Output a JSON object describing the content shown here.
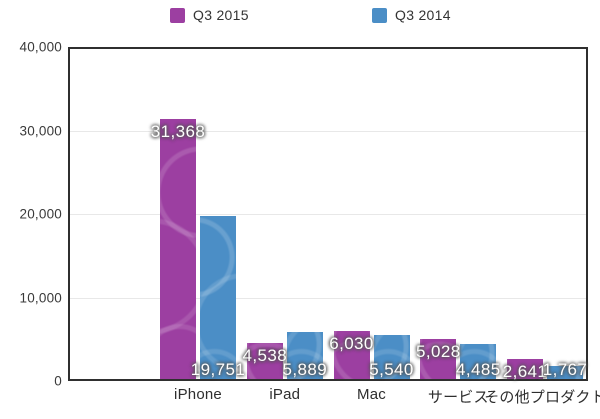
{
  "chart_data": {
    "type": "bar",
    "title": "",
    "categories": [
      "iPhone",
      "iPad",
      "Mac",
      "サービス",
      "その他プロダクト"
    ],
    "series": [
      {
        "name": "Q3 2015",
        "color": "#9c3fa1",
        "values": [
          31368,
          4538,
          6030,
          5028,
          2641
        ],
        "values_formatted": [
          "31,368",
          "4,538",
          "6,030",
          "5,028",
          "2,641"
        ]
      },
      {
        "name": "Q3 2014",
        "color": "#4b8ec6",
        "values": [
          19751,
          5889,
          5540,
          4485,
          1767
        ],
        "values_formatted": [
          "19,751",
          "5,889",
          "5,540",
          "4,485",
          "1,767"
        ]
      }
    ],
    "xlabel": "",
    "ylabel": "",
    "ylim": [
      0,
      40000
    ],
    "yticks": [
      0,
      10000,
      20000,
      30000,
      40000
    ],
    "ytick_labels": [
      "0",
      "10,000",
      "20,000",
      "30,000",
      "40,000"
    ],
    "grid": true,
    "gridline_values": [
      10000,
      20000,
      30000
    ],
    "legend_position": "top",
    "colors": {
      "axis": "#2f2f2f",
      "gridline": "#e8e8e8",
      "value_label": "#ffffff",
      "tick_label": "#3a3a3a",
      "category_label": "#2e2e2e",
      "background": "#ffffff"
    }
  }
}
